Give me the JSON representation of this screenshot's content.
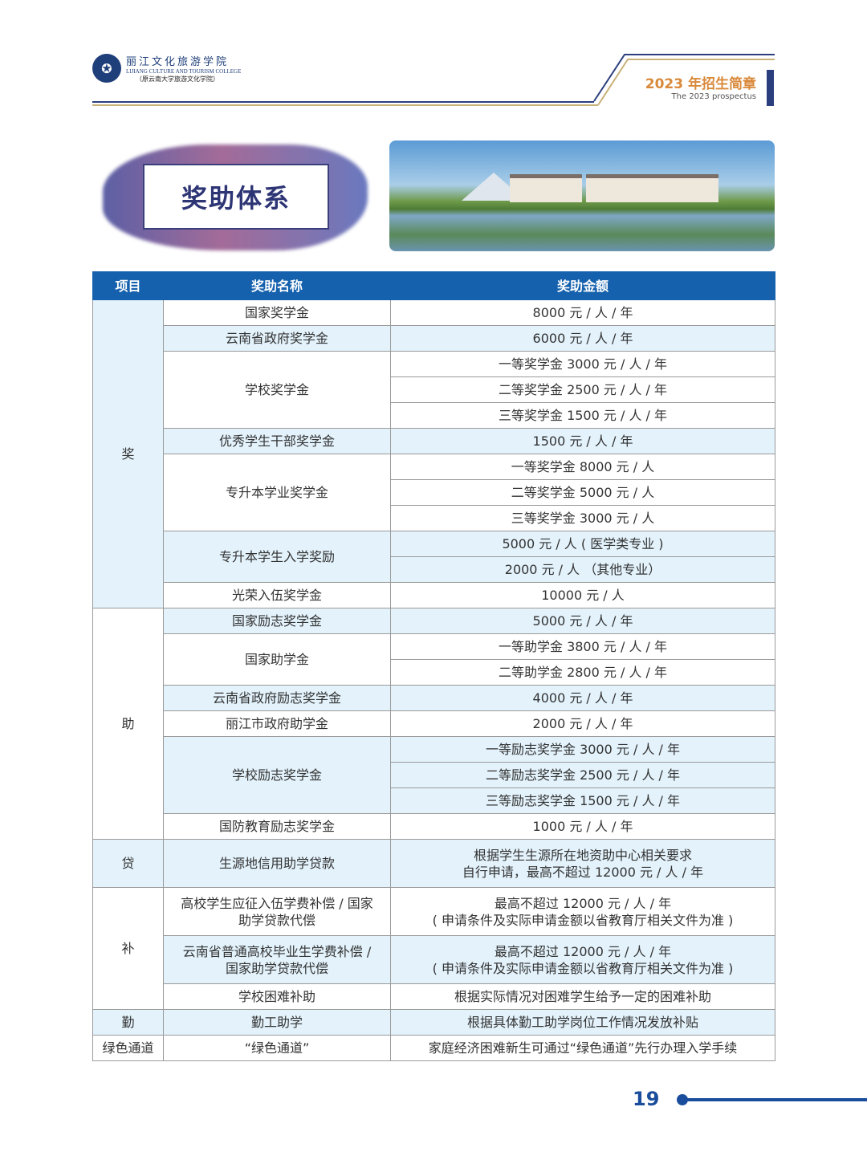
{
  "header": {
    "college_cn": "丽江文化旅游学院",
    "college_en": "LIJIANG CULTURE AND TOURISM COLLEGE",
    "college_former": "（原云南大学旅游文化学院）",
    "prospectus_cn": "2023 年招生简章",
    "prospectus_en": "The 2023 prospectus"
  },
  "section_title": "奖助体系",
  "colors": {
    "header_blue": "#1561ad",
    "row_shade": "#e3f2fb",
    "accent_orange": "#d9893a",
    "navy": "#2b3f7e"
  },
  "table": {
    "columns": [
      "项目",
      "奖助名称",
      "奖助金额"
    ],
    "groups": [
      {
        "category": "奖",
        "shaded": true,
        "items": [
          {
            "name": "国家奖学金",
            "shaded": false,
            "amounts": [
              "8000 元 / 人 / 年"
            ]
          },
          {
            "name": "云南省政府奖学金",
            "shaded": true,
            "amounts": [
              "6000 元 / 人 / 年"
            ]
          },
          {
            "name": "学校奖学金",
            "shaded": false,
            "amounts": [
              "一等奖学金 3000 元 / 人 / 年",
              "二等奖学金 2500 元 / 人 / 年",
              "三等奖学金 1500 元 / 人 / 年"
            ]
          },
          {
            "name": "优秀学生干部奖学金",
            "shaded": true,
            "amounts": [
              "1500 元 / 人 / 年"
            ]
          },
          {
            "name": "专升本学业奖学金",
            "shaded": false,
            "amounts": [
              "一等奖学金 8000 元 / 人",
              "二等奖学金 5000 元 / 人",
              "三等奖学金 3000 元 / 人"
            ]
          },
          {
            "name": "专升本学生入学奖励",
            "shaded": true,
            "amounts": [
              "5000 元 / 人 ( 医学类专业 )",
              "2000 元 / 人 （其他专业）"
            ]
          },
          {
            "name": "光荣入伍奖学金",
            "shaded": false,
            "amounts": [
              "10000 元 / 人"
            ]
          }
        ]
      },
      {
        "category": "助",
        "shaded": false,
        "items": [
          {
            "name": "国家励志奖学金",
            "shaded": true,
            "amounts": [
              "5000 元 / 人 / 年"
            ]
          },
          {
            "name": "国家助学金",
            "shaded": false,
            "amounts": [
              "一等助学金 3800 元 / 人 / 年",
              "二等助学金 2800 元 / 人 / 年"
            ]
          },
          {
            "name": "云南省政府励志奖学金",
            "shaded": true,
            "amounts": [
              "4000 元 / 人 / 年"
            ]
          },
          {
            "name": "丽江市政府助学金",
            "shaded": false,
            "amounts": [
              "2000 元 / 人 / 年"
            ]
          },
          {
            "name": "学校励志奖学金",
            "shaded": true,
            "amounts": [
              "一等励志奖学金 3000 元 / 人 / 年",
              "二等励志奖学金 2500 元 / 人 / 年",
              "三等励志奖学金 1500 元 / 人 / 年"
            ]
          },
          {
            "name": "国防教育励志奖学金",
            "shaded": false,
            "amounts": [
              "1000 元 / 人 / 年"
            ]
          }
        ]
      },
      {
        "category": "贷",
        "shaded": true,
        "items": [
          {
            "name": "生源地信用助学贷款",
            "shaded": true,
            "tall": true,
            "amounts": [
              "根据学生生源所在地资助中心相关要求\n自行申请，最高不超过 12000 元 / 人 / 年"
            ]
          }
        ]
      },
      {
        "category": "补",
        "shaded": false,
        "items": [
          {
            "name": "高校学生应征入伍学费补偿 / 国家\n助学贷款代偿",
            "shaded": false,
            "tall": true,
            "amounts": [
              "最高不超过 12000 元 / 人 / 年\n( 申请条件及实际申请金额以省教育厅相关文件为准 )"
            ]
          },
          {
            "name": "云南省普通高校毕业生学费补偿 /\n国家助学贷款代偿",
            "shaded": true,
            "tall": true,
            "amounts": [
              "最高不超过 12000 元 / 人 / 年\n( 申请条件及实际申请金额以省教育厅相关文件为准 )"
            ]
          },
          {
            "name": "学校困难补助",
            "shaded": false,
            "amounts": [
              "根据实际情况对困难学生给予一定的困难补助"
            ]
          }
        ]
      },
      {
        "category": "勤",
        "shaded": true,
        "items": [
          {
            "name": "勤工助学",
            "shaded": true,
            "amounts": [
              "根据具体勤工助学岗位工作情况发放补贴"
            ]
          }
        ]
      },
      {
        "category": "绿色通道",
        "shaded": false,
        "items": [
          {
            "name": "“绿色通道”",
            "shaded": false,
            "amounts": [
              "家庭经济困难新生可通过“绿色通道”先行办理入学手续"
            ]
          }
        ]
      }
    ]
  },
  "page_number": "19"
}
